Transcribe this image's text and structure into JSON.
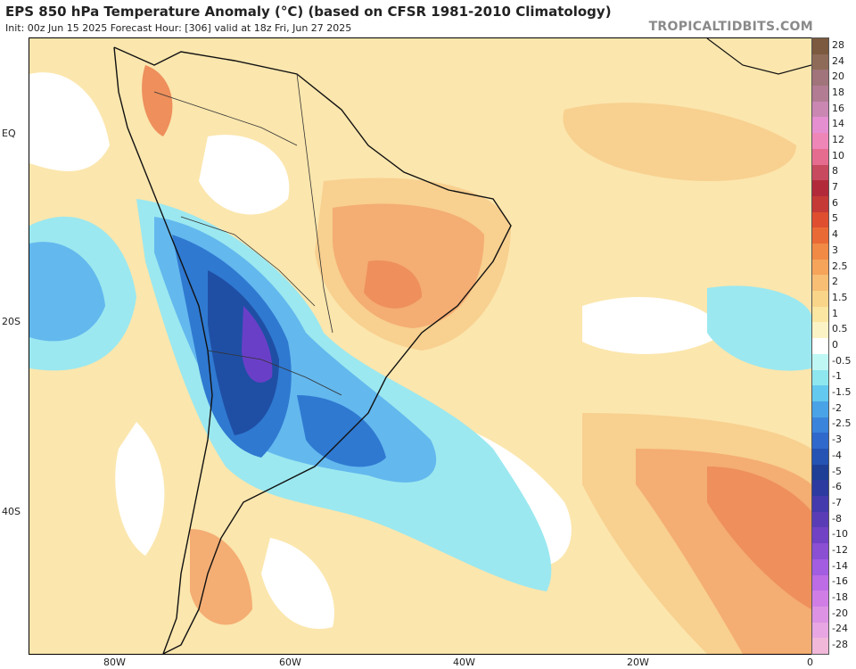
{
  "header": {
    "title": "EPS 850 hPa Temperature Anomaly (°C) (based on CFSR 1981-2010 Climatology)",
    "subtitle": "Init: 00z Jun 15 2025   Forecast Hour: [306]   valid at 18z Fri, Jun 27 2025",
    "brand": "TROPICALTIDBITS.COM"
  },
  "map": {
    "lat_labels": [
      "EQ",
      "20S",
      "40S"
    ],
    "lon_labels": [
      "80W",
      "60W",
      "40W",
      "20W",
      "0"
    ],
    "colors": {
      "ocean_neutral": "#fbe6ad",
      "weak_warm": "#f8d08f",
      "warm": "#f4ad73",
      "warmer": "#ee8f5c",
      "cool": "#9be8f0",
      "cooler": "#63b8ee",
      "cold": "#2f79d1",
      "colder": "#1f4fa5",
      "coldest": "#6a3fc8",
      "neutral_white": "#ffffff",
      "border": "#111111"
    }
  },
  "colorbar": {
    "labels": [
      "28",
      "24",
      "20",
      "18",
      "16",
      "14",
      "12",
      "10",
      "8",
      "7",
      "6",
      "5",
      "4",
      "3",
      "2.5",
      "2",
      "1.5",
      "1",
      "0.5",
      "0",
      "-0.5",
      "-1",
      "-1.5",
      "-2",
      "-2.5",
      "-3",
      "-4",
      "-5",
      "-6",
      "-7",
      "-8",
      "-10",
      "-12",
      "-14",
      "-16",
      "-18",
      "-20",
      "-24",
      "-28"
    ],
    "colors": [
      "#7b5a3f",
      "#8e6b58",
      "#a0747a",
      "#b27c93",
      "#c987b2",
      "#e58fd1",
      "#ef86b8",
      "#e66c8f",
      "#c84a5e",
      "#b22a3a",
      "#c53a35",
      "#df4f2f",
      "#ea6a35",
      "#f08a45",
      "#f6a45a",
      "#f7be74",
      "#f9d589",
      "#fbe6a2",
      "#fbf3c5",
      "#ffffff",
      "#bff7f5",
      "#8ee6ee",
      "#64c9ee",
      "#4aa3e6",
      "#3b84dc",
      "#2f69cc",
      "#2453b3",
      "#1e3f95",
      "#2d3aa0",
      "#4439ad",
      "#5a3db6",
      "#7142c4",
      "#8a4fd3",
      "#a25de0",
      "#bd6ce6",
      "#d07ee6",
      "#dd92e3",
      "#e8a6e2",
      "#f1b8da"
    ]
  }
}
